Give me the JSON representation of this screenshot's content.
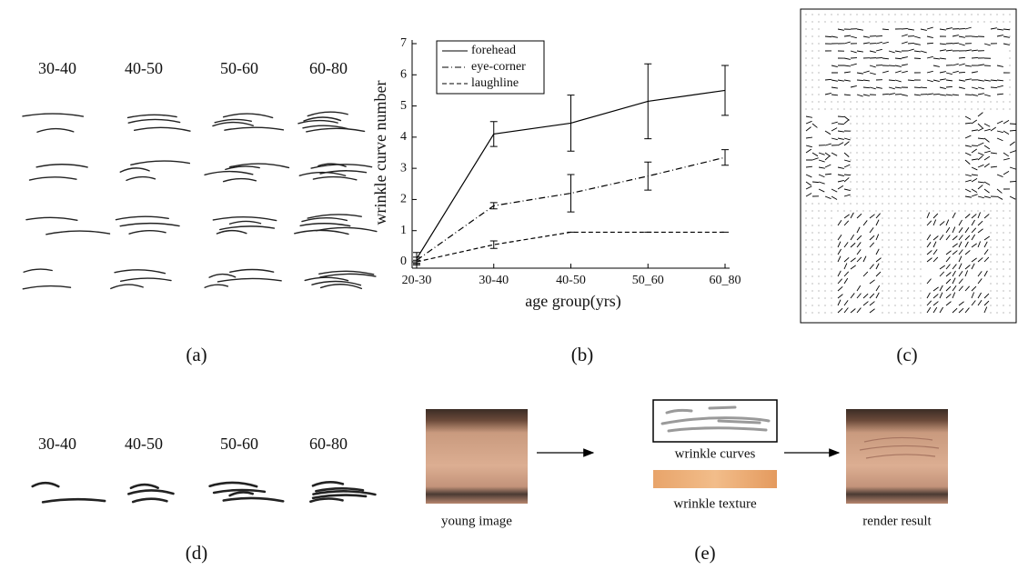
{
  "panel_a": {
    "label": "(a)",
    "groups": [
      "30-40",
      "40-50",
      "50-60",
      "60-80"
    ]
  },
  "chart_data": {
    "type": "line",
    "panel_label": "(b)",
    "y_label": "wrinkle curve number",
    "x_label": "age group(yrs)",
    "categories": [
      "20-30",
      "30-40",
      "40-50",
      "50_60",
      "60_80"
    ],
    "ylim": [
      0,
      7
    ],
    "yticks": [
      0,
      1,
      2,
      3,
      4,
      5,
      6,
      7
    ],
    "legend": "upper left",
    "series": [
      {
        "name": "forehead",
        "color": "#000000",
        "dash": "solid",
        "values": [
          0.1,
          4.1,
          4.45,
          5.15,
          5.5
        ],
        "errors": [
          0.2,
          0.4,
          0.9,
          1.2,
          0.8
        ]
      },
      {
        "name": "eye-corner",
        "color": "#000000",
        "dash": "dashdot",
        "values": [
          0.05,
          1.8,
          2.2,
          2.75,
          3.35
        ],
        "errors": [
          0.1,
          0.1,
          0.6,
          0.45,
          0.25
        ]
      },
      {
        "name": "laughline",
        "color": "#000000",
        "dash": "dashed",
        "values": [
          0,
          0.55,
          0.95,
          0.95,
          0.95
        ],
        "errors": [
          0.05,
          0.12,
          0,
          0,
          0
        ]
      }
    ]
  },
  "panel_c": {
    "label": "(c)"
  },
  "panel_d": {
    "label": "(d)",
    "groups": [
      "30-40",
      "40-50",
      "50-60",
      "60-80"
    ]
  },
  "panel_e": {
    "label": "(e)",
    "young": "young image",
    "curves": "wrinkle curves",
    "texture": "wrinkle texture",
    "result": "render result"
  }
}
